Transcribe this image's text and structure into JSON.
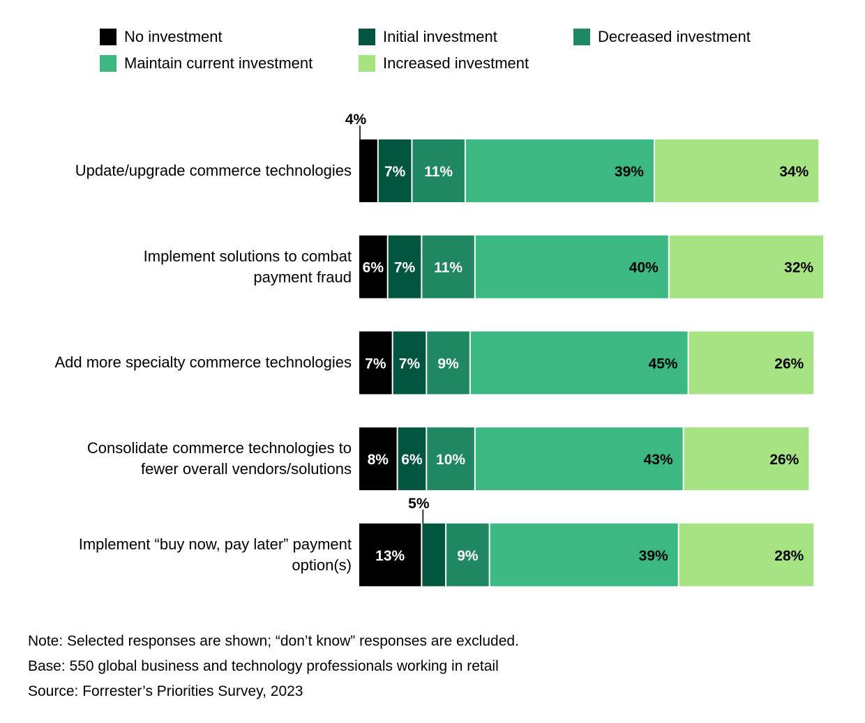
{
  "chart_data": {
    "type": "bar",
    "orientation": "horizontal",
    "stacked": true,
    "categories": [
      "Update/upgrade commerce technologies",
      "Implement solutions to combat payment fraud",
      "Add more specialty commerce technologies",
      "Consolidate commerce technologies to fewer overall vendors/solutions",
      "Implement “buy now, pay later” payment option(s)"
    ],
    "category_lines": [
      [
        "Update/upgrade commerce technologies"
      ],
      [
        "Implement solutions to combat",
        "payment fraud"
      ],
      [
        "Add more specialty commerce technologies"
      ],
      [
        "Consolidate commerce technologies to",
        "fewer overall vendors/solutions"
      ],
      [
        "Implement “buy now, pay later” payment",
        "option(s)"
      ]
    ],
    "series": [
      {
        "name": "No investment",
        "color": "#000000",
        "label_color": "#ffffff",
        "values": [
          4,
          6,
          7,
          8,
          13
        ]
      },
      {
        "name": "Initial investment",
        "color": "#02563f",
        "label_color": "#ffffff",
        "values": [
          7,
          7,
          7,
          6,
          5
        ]
      },
      {
        "name": "Decreased investment",
        "color": "#1f8761",
        "label_color": "#ffffff",
        "values": [
          11,
          11,
          9,
          10,
          9
        ]
      },
      {
        "name": "Maintain current investment",
        "color": "#3cb982",
        "label_color": "#000000",
        "values": [
          39,
          40,
          45,
          43,
          39
        ]
      },
      {
        "name": "Increased investment",
        "color": "#a6e383",
        "label_color": "#000000",
        "values": [
          34,
          32,
          26,
          26,
          28
        ]
      }
    ],
    "unit": "%",
    "xlim": [
      0,
      100
    ],
    "legend_position": "top",
    "grid": false,
    "title": "",
    "xlabel": "",
    "ylabel": ""
  },
  "legend": [
    "No investment",
    "Initial investment",
    "Decreased investment",
    "Maintain current investment",
    "Increased investment"
  ],
  "notes": {
    "note": "Note: Selected responses are shown; “don’t know” responses are excluded.",
    "base": "Base: 550 global business and technology professionals working in retail",
    "source": "Source: Forrester’s Priorities Survey, 2023"
  }
}
